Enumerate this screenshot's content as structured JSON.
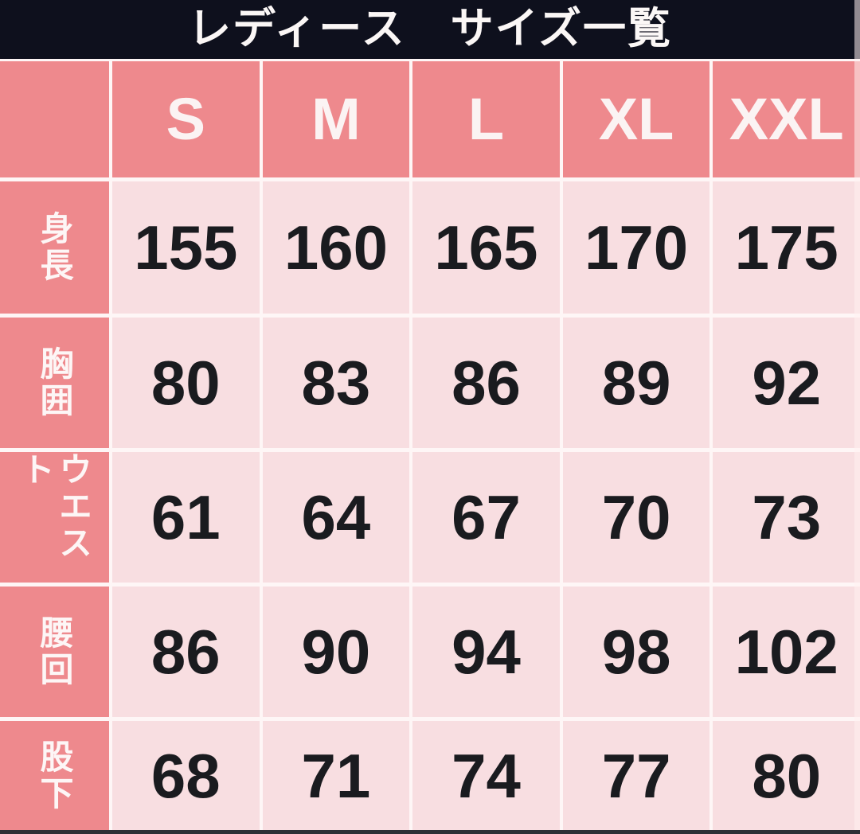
{
  "title": "レディース　サイズ一覧",
  "colors": {
    "title_bar_bg": "#0e101d",
    "header_bg": "#ee898d",
    "cell_bg": "#f8dee1",
    "grid_line": "#fef6f6",
    "header_text": "#fbf3f3",
    "number_text": "#1a1b1f",
    "bottom_strip": "#2e2f35"
  },
  "chart_data": {
    "type": "table",
    "title": "レディース　サイズ一覧",
    "columns": [
      "S",
      "M",
      "L",
      "XL",
      "XXL"
    ],
    "rows": [
      {
        "label": "身長",
        "values": [
          155,
          160,
          165,
          170,
          175
        ]
      },
      {
        "label": "胸囲",
        "values": [
          80,
          83,
          86,
          89,
          92
        ]
      },
      {
        "label": "ウエスト",
        "values": [
          61,
          64,
          67,
          70,
          73
        ]
      },
      {
        "label": "腰回",
        "values": [
          86,
          90,
          94,
          98,
          102
        ]
      },
      {
        "label": "股下",
        "values": [
          68,
          71,
          74,
          77,
          80
        ]
      }
    ]
  }
}
